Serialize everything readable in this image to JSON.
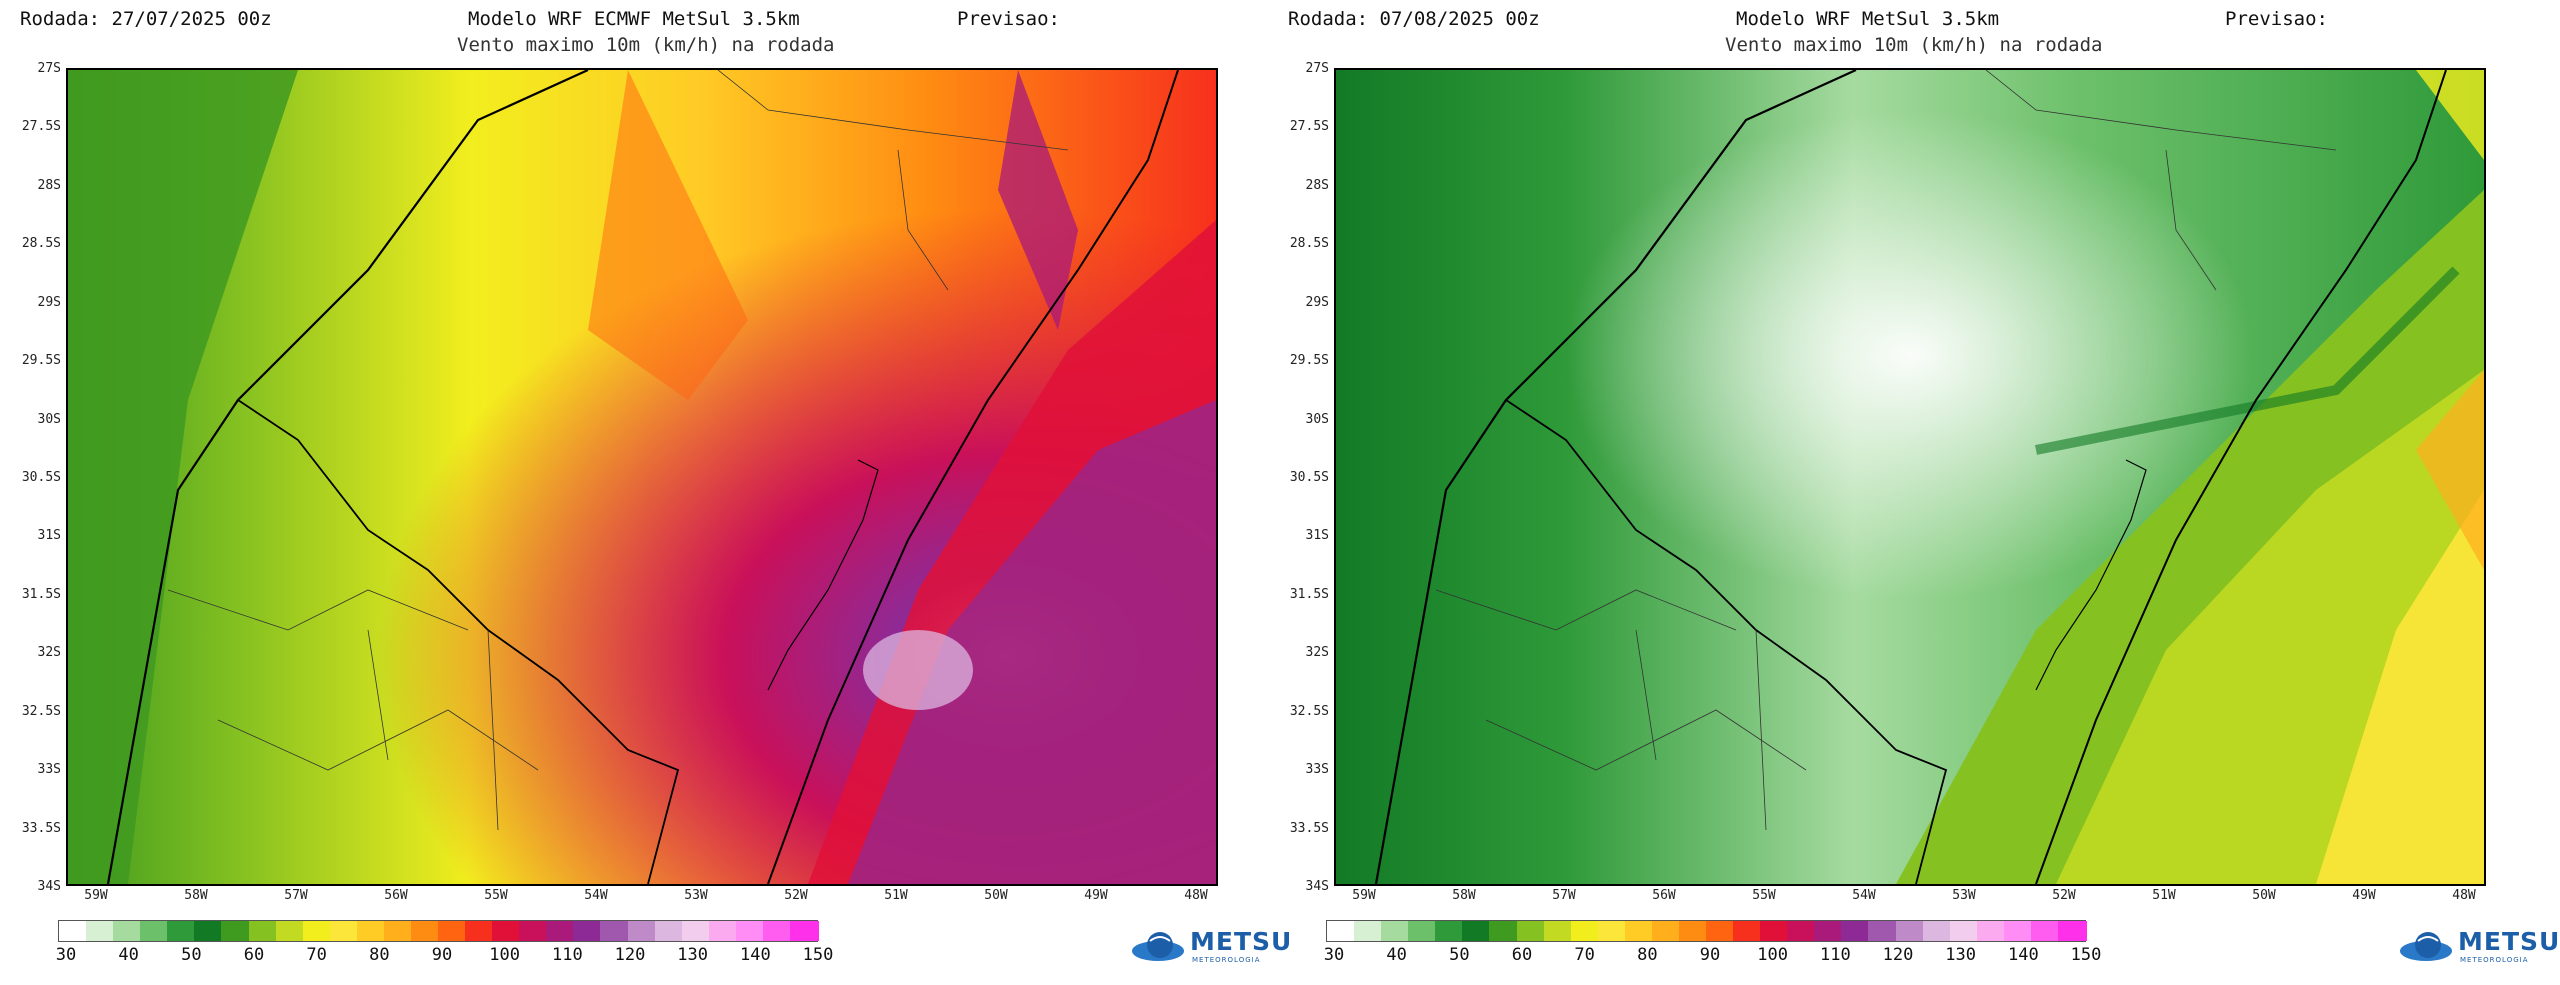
{
  "colorbar_ticks": [
    "30",
    "40",
    "50",
    "60",
    "70",
    "80",
    "90",
    "100",
    "110",
    "120",
    "130",
    "140",
    "150"
  ],
  "lat_labels": [
    "27S",
    "27.5S",
    "28S",
    "28.5S",
    "29S",
    "29.5S",
    "30S",
    "30.5S",
    "31S",
    "31.5S",
    "32S",
    "32.5S",
    "33S",
    "33.5S",
    "34S"
  ],
  "lon_labels": [
    "59W",
    "58W",
    "57W",
    "56W",
    "55W",
    "54W",
    "53W",
    "52W",
    "51W",
    "50W",
    "49W",
    "48W"
  ],
  "colorbar_colors": [
    "#ffffff",
    "#d7efd3",
    "#a6dba0",
    "#6cc06a",
    "#2f9a39",
    "#127a25",
    "#3f9a20",
    "#85c121",
    "#c3da22",
    "#f2ee1e",
    "#fde63a",
    "#ffcb25",
    "#ffae1c",
    "#ff8c12",
    "#ff6411",
    "#f7301d",
    "#e01038",
    "#c9105a",
    "#a91a7a",
    "#8e2a96",
    "#a058ae",
    "#bf8ac8",
    "#dcb7e0",
    "#f3cdee",
    "#fbaaf0",
    "#ff8df5",
    "#ff5cf0",
    "#ff30ea"
  ],
  "logo": {
    "text": "METSU",
    "sub": "METEOROLOGIA",
    "icon": "globe-icon"
  },
  "panels": [
    {
      "run_label": "Rodada: 27/07/2025 00z",
      "model_label": "Modelo WRF ECMWF MetSul 3.5km",
      "forecast_label": "Previsao:",
      "subtitle": "Vento maximo 10m (km/h) na rodada",
      "palette": "storm"
    },
    {
      "run_label": "Rodada: 07/08/2025 00z",
      "model_label": "Modelo WRF MetSul 3.5km",
      "forecast_label": "Previsao:",
      "subtitle": "Vento maximo 10m (km/h) na rodada",
      "palette": "calm"
    }
  ]
}
